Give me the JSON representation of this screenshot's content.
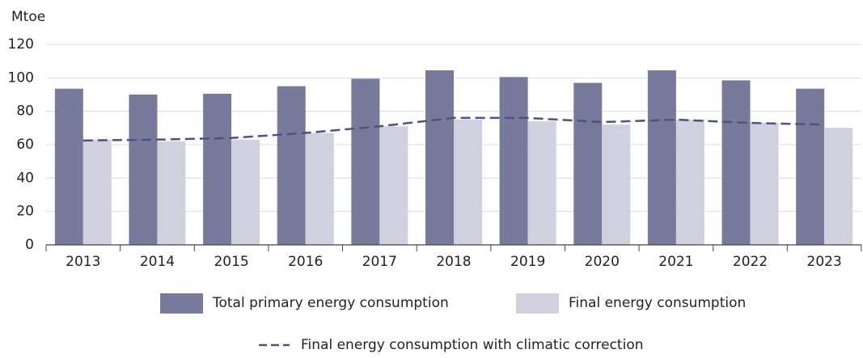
{
  "chart_data": {
    "type": "bar_line",
    "y_axis_label": "Mtoe",
    "categories": [
      "2013",
      "2014",
      "2015",
      "2016",
      "2017",
      "2018",
      "2019",
      "2020",
      "2021",
      "2022",
      "2023"
    ],
    "series": [
      {
        "name": "Total primary energy consumption",
        "color": "#777a9b",
        "kind": "bar",
        "values": [
          93.5,
          90,
          90.5,
          95,
          99.5,
          104.5,
          100.5,
          97,
          104.5,
          98.5,
          93.5
        ]
      },
      {
        "name": "Final energy consumption",
        "color": "#d0d0de",
        "kind": "bar",
        "values": [
          63,
          62,
          63,
          67,
          71,
          75,
          74,
          72,
          75,
          73,
          70
        ]
      },
      {
        "name": "Final energy consumption with climatic correction",
        "color": "#4d5280",
        "kind": "line",
        "dashed": true,
        "values": [
          62.5,
          63,
          64,
          67,
          71,
          76,
          76,
          73.5,
          75,
          73,
          72
        ]
      }
    ],
    "ylim": [
      0,
      120
    ],
    "yticks": [
      0,
      20,
      40,
      60,
      80,
      100,
      120
    ],
    "grid": true
  }
}
